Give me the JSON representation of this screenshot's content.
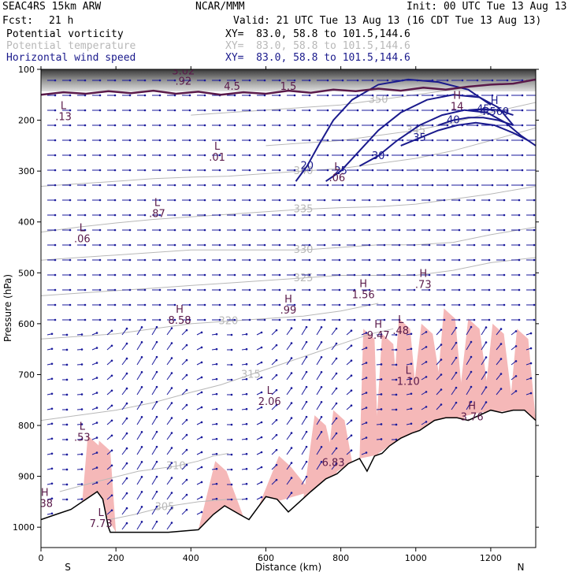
{
  "header": {
    "model": "SEAC4RS 15km ARW",
    "org": "NCAR/MMM",
    "init": "Init: 00 UTC Tue 13 Aug 13",
    "fcst_label": "Fcst:",
    "fcst_value": "21 h",
    "valid": "Valid: 21 UTC Tue 13 Aug 13 (16 CDT Tue 13 Aug 13)",
    "fields": [
      {
        "name": "Potential vorticity",
        "xy": "XY=  83.0, 58.8 to 101.5,144.6",
        "color": "#000000"
      },
      {
        "name": "Potential temperature",
        "xy": "XY=  83.0, 58.8 to 101.5,144.6",
        "color": "#b8b8b8"
      },
      {
        "name": "Horizontal wind speed",
        "xy": "XY=  83.0, 58.8 to 101.5,144.6",
        "color": "#1a1a8c"
      }
    ]
  },
  "chart_data": {
    "type": "cross-section",
    "xlabel": "Distance (km)",
    "ylabel": "Pressure (hPa)",
    "xlim": [
      0,
      1320
    ],
    "ylim": [
      1040,
      100
    ],
    "x_ticks": [
      "0",
      "200",
      "400",
      "600",
      "800",
      "1000",
      "1200"
    ],
    "y_ticks": [
      "100",
      "200",
      "300",
      "400",
      "500",
      "600",
      "700",
      "800",
      "900",
      "1000"
    ],
    "end_labels": {
      "left": "S",
      "right": "N"
    },
    "colors": {
      "pv_contour": "#5a1a4a",
      "pv_fill": "#f5b8b8",
      "theta_contour": "#b8b8b8",
      "wind_contour": "#1a1a8c",
      "wind_vectors": "#1a1a9c",
      "terrain": "#000000",
      "stratosphere_shade": "#444444"
    },
    "terrain": [
      [
        0,
        985
      ],
      [
        40,
        975
      ],
      [
        80,
        965
      ],
      [
        120,
        945
      ],
      [
        150,
        930
      ],
      [
        165,
        945
      ],
      [
        180,
        1000
      ],
      [
        185,
        1010
      ],
      [
        250,
        1010
      ],
      [
        340,
        1010
      ],
      [
        420,
        1005
      ],
      [
        460,
        975
      ],
      [
        490,
        958
      ],
      [
        530,
        975
      ],
      [
        555,
        985
      ],
      [
        580,
        960
      ],
      [
        600,
        940
      ],
      [
        630,
        945
      ],
      [
        660,
        970
      ],
      [
        690,
        950
      ],
      [
        720,
        930
      ],
      [
        760,
        905
      ],
      [
        790,
        895
      ],
      [
        820,
        875
      ],
      [
        850,
        865
      ],
      [
        870,
        890
      ],
      [
        890,
        860
      ],
      [
        910,
        855
      ],
      [
        930,
        840
      ],
      [
        960,
        825
      ],
      [
        990,
        815
      ],
      [
        1010,
        810
      ],
      [
        1030,
        800
      ],
      [
        1050,
        790
      ],
      [
        1080,
        785
      ],
      [
        1110,
        785
      ],
      [
        1140,
        790
      ],
      [
        1170,
        780
      ],
      [
        1200,
        770
      ],
      [
        1230,
        775
      ],
      [
        1260,
        770
      ],
      [
        1290,
        770
      ],
      [
        1320,
        790
      ]
    ],
    "theta_contours": [
      {
        "label": "305",
        "points": [
          [
            50,
            1000
          ],
          [
            150,
            990
          ],
          [
            250,
            975
          ],
          [
            330,
            960
          ],
          [
            420,
            950
          ],
          [
            500,
            945
          ],
          [
            540,
            945
          ]
        ]
      },
      {
        "label": "310",
        "points": [
          [
            50,
            930
          ],
          [
            150,
            910
          ],
          [
            260,
            890
          ],
          [
            360,
            880
          ],
          [
            420,
            870
          ],
          [
            460,
            860
          ],
          [
            500,
            855
          ]
        ]
      },
      {
        "label": "315",
        "points": [
          [
            0,
            790
          ],
          [
            100,
            780
          ],
          [
            200,
            770
          ],
          [
            300,
            755
          ],
          [
            400,
            735
          ],
          [
            480,
            720
          ],
          [
            560,
            700
          ],
          [
            640,
            680
          ],
          [
            720,
            660
          ],
          [
            800,
            640
          ],
          [
            880,
            620
          ],
          [
            940,
            610
          ]
        ]
      },
      {
        "label": "320",
        "points": [
          [
            0,
            630
          ],
          [
            100,
            625
          ],
          [
            200,
            620
          ],
          [
            300,
            610
          ],
          [
            400,
            600
          ],
          [
            500,
            595
          ],
          [
            600,
            590
          ],
          [
            700,
            585
          ],
          [
            800,
            575
          ],
          [
            900,
            560
          ]
        ]
      },
      {
        "label": "325",
        "points": [
          [
            0,
            545
          ],
          [
            100,
            540
          ],
          [
            200,
            535
          ],
          [
            300,
            530
          ],
          [
            400,
            525
          ],
          [
            500,
            520
          ],
          [
            600,
            515
          ],
          [
            700,
            510
          ],
          [
            800,
            505
          ],
          [
            900,
            505
          ],
          [
            1000,
            505
          ],
          [
            1100,
            495
          ],
          [
            1200,
            480
          ],
          [
            1320,
            470
          ]
        ]
      },
      {
        "label": "330",
        "points": [
          [
            0,
            475
          ],
          [
            100,
            470
          ],
          [
            200,
            465
          ],
          [
            300,
            460
          ],
          [
            400,
            455
          ],
          [
            500,
            455
          ],
          [
            600,
            455
          ],
          [
            700,
            455
          ],
          [
            800,
            450
          ],
          [
            900,
            445
          ],
          [
            1000,
            445
          ],
          [
            1100,
            440
          ],
          [
            1200,
            425
          ],
          [
            1320,
            410
          ]
        ]
      },
      {
        "label": "335",
        "points": [
          [
            0,
            420
          ],
          [
            100,
            410
          ],
          [
            200,
            402
          ],
          [
            300,
            395
          ],
          [
            400,
            390
          ],
          [
            500,
            385
          ],
          [
            600,
            380
          ],
          [
            700,
            375
          ],
          [
            800,
            372
          ],
          [
            900,
            370
          ],
          [
            1000,
            365
          ],
          [
            1100,
            355
          ],
          [
            1200,
            345
          ],
          [
            1320,
            330
          ]
        ]
      },
      {
        "label": "340",
        "points": [
          [
            0,
            330
          ],
          [
            100,
            325
          ],
          [
            200,
            320
          ],
          [
            300,
            315
          ],
          [
            400,
            312
          ],
          [
            500,
            310
          ],
          [
            600,
            305
          ],
          [
            700,
            300
          ],
          [
            800,
            295
          ],
          [
            900,
            285
          ],
          [
            1000,
            275
          ],
          [
            1100,
            260
          ],
          [
            1200,
            240
          ],
          [
            1320,
            215
          ]
        ]
      },
      {
        "label": "345",
        "points": [
          [
            600,
            250
          ],
          [
            700,
            245
          ],
          [
            800,
            240
          ],
          [
            900,
            230
          ],
          [
            1000,
            220
          ],
          [
            1100,
            205
          ],
          [
            1200,
            185
          ],
          [
            1320,
            165
          ]
        ]
      },
      {
        "label": "350",
        "points": [
          [
            400,
            190
          ],
          [
            500,
            185
          ],
          [
            600,
            180
          ],
          [
            700,
            175
          ],
          [
            800,
            170
          ],
          [
            900,
            160
          ],
          [
            1000,
            150
          ],
          [
            1100,
            140
          ],
          [
            1200,
            130
          ],
          [
            1320,
            120
          ]
        ]
      }
    ],
    "wind_contours": [
      {
        "label": "20",
        "points": [
          [
            680,
            320
          ],
          [
            710,
            290
          ],
          [
            740,
            250
          ],
          [
            780,
            200
          ],
          [
            830,
            160
          ],
          [
            900,
            130
          ],
          [
            980,
            120
          ],
          [
            1060,
            125
          ],
          [
            1140,
            140
          ],
          [
            1200,
            170
          ]
        ]
      },
      {
        "label": "25",
        "points": [
          [
            760,
            320
          ],
          [
            800,
            300
          ],
          [
            850,
            260
          ],
          [
            900,
            220
          ],
          [
            960,
            185
          ],
          [
            1030,
            160
          ],
          [
            1100,
            150
          ],
          [
            1170,
            155
          ],
          [
            1220,
            175
          ],
          [
            1260,
            210
          ]
        ]
      },
      {
        "label": "30",
        "points": [
          [
            850,
            290
          ],
          [
            900,
            270
          ],
          [
            950,
            240
          ],
          [
            1010,
            210
          ],
          [
            1070,
            190
          ],
          [
            1130,
            180
          ],
          [
            1190,
            185
          ],
          [
            1240,
            205
          ],
          [
            1280,
            230
          ],
          [
            1320,
            250
          ]
        ]
      },
      {
        "label": "35",
        "points": [
          [
            960,
            250
          ],
          [
            1010,
            235
          ],
          [
            1060,
            220
          ],
          [
            1110,
            210
          ],
          [
            1160,
            205
          ],
          [
            1210,
            210
          ],
          [
            1260,
            225
          ],
          [
            1300,
            240
          ]
        ]
      },
      {
        "label": "40",
        "points": [
          [
            1060,
            210
          ],
          [
            1100,
            200
          ],
          [
            1140,
            195
          ],
          [
            1180,
            195
          ],
          [
            1220,
            200
          ],
          [
            1260,
            210
          ]
        ]
      },
      {
        "label": "45",
        "points": [
          [
            1140,
            180
          ],
          [
            1180,
            178
          ],
          [
            1220,
            180
          ],
          [
            1260,
            190
          ]
        ]
      }
    ],
    "pv_tropopause": [
      [
        0,
        150
      ],
      [
        60,
        145
      ],
      [
        120,
        148
      ],
      [
        180,
        143
      ],
      [
        240,
        147
      ],
      [
        300,
        142
      ],
      [
        360,
        148
      ],
      [
        420,
        144
      ],
      [
        480,
        150
      ],
      [
        540,
        145
      ],
      [
        600,
        148
      ],
      [
        660,
        142
      ],
      [
        720,
        146
      ],
      [
        780,
        140
      ],
      [
        840,
        143
      ],
      [
        900,
        138
      ],
      [
        960,
        142
      ],
      [
        1020,
        136
      ],
      [
        1080,
        140
      ],
      [
        1140,
        134
      ],
      [
        1200,
        130
      ],
      [
        1260,
        128
      ],
      [
        1320,
        120
      ]
    ],
    "annotations": [
      {
        "type": "L",
        "value": ".13",
        "x": 60,
        "p": 200,
        "color": "#5a1a4a"
      },
      {
        "type": "L",
        "value": ".01",
        "x": 470,
        "p": 280,
        "color": "#5a1a4a"
      },
      {
        "type": "L",
        "value": ".06",
        "x": 790,
        "p": 320,
        "color": "#5a1a4a"
      },
      {
        "type": "L",
        "value": ".87",
        "x": 310,
        "p": 390,
        "color": "#5a1a4a"
      },
      {
        "type": "L",
        "value": ".06",
        "x": 110,
        "p": 440,
        "color": "#5a1a4a"
      },
      {
        "type": "H",
        "value": "8.58",
        "x": 370,
        "p": 600,
        "color": "#5a1a4a"
      },
      {
        "type": "H",
        "value": ".99",
        "x": 660,
        "p": 580,
        "color": "#5a1a4a"
      },
      {
        "type": "H",
        "value": "1.56",
        "x": 860,
        "p": 550,
        "color": "#5a1a4a"
      },
      {
        "type": "H",
        "value": ".73",
        "x": 1020,
        "p": 530,
        "color": "#5a1a4a"
      },
      {
        "type": "H",
        "value": "9.47",
        "x": 900,
        "p": 630,
        "color": "#5a1a4a"
      },
      {
        "type": "L",
        "value": ".48",
        "x": 960,
        "p": 620,
        "color": "#5a1a4a"
      },
      {
        "type": "L",
        "value": "1.10",
        "x": 980,
        "p": 720,
        "color": "#5a1a4a"
      },
      {
        "type": "L",
        "value": "2.06",
        "x": 610,
        "p": 760,
        "color": "#5a1a4a"
      },
      {
        "type": "H",
        "value": "3.76",
        "x": 1150,
        "p": 790,
        "color": "#5a1a4a"
      },
      {
        "type": "L",
        "value": ".53",
        "x": 110,
        "p": 830,
        "color": "#5a1a4a"
      },
      {
        "type": "",
        "value": "6.83",
        "x": 780,
        "p": 880,
        "color": "#5a1a4a"
      },
      {
        "type": "H",
        "value": ".38",
        "x": 10,
        "p": 960,
        "color": "#5a1a4a"
      },
      {
        "type": "L",
        "value": "7.73",
        "x": 160,
        "p": 1000,
        "color": "#5a1a4a"
      },
      {
        "type": "",
        "value": "4.5",
        "x": 510,
        "p": 140,
        "color": "#5a1a4a"
      },
      {
        "type": "",
        "value": "1.5",
        "x": 660,
        "p": 140,
        "color": "#5a1a4a"
      },
      {
        "type": "",
        "value": "3.02",
        "x": 380,
        "p": 110,
        "color": "#5a1a4a"
      },
      {
        "type": "",
        "value": ".92",
        "x": 380,
        "p": 130,
        "color": "#5a1a4a"
      },
      {
        "type": "H",
        "value": "14",
        "x": 1110,
        "p": 180,
        "color": "#5a1a4a"
      },
      {
        "type": "H",
        "value": "4.569",
        "x": 1210,
        "p": 190,
        "color": "#1a1a8c"
      }
    ]
  }
}
